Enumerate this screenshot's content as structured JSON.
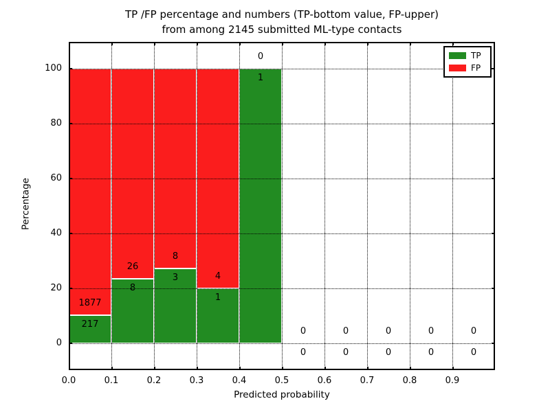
{
  "chart_data": {
    "type": "bar",
    "stacked": true,
    "title_line1": "TP /FP percentage and numbers (TP-bottom value, FP-upper)",
    "title_line2": "from among 2145 submitted ML-type contacts",
    "total_contacts": 2145,
    "xlabel": "Predicted probability",
    "ylabel": "Percentage",
    "xlim": [
      0.0,
      1.0
    ],
    "ylim": [
      -10,
      110
    ],
    "grid": true,
    "x_tick_labels": [
      "0.0",
      "0.1",
      "0.2",
      "0.3",
      "0.4",
      "0.5",
      "0.6",
      "0.7",
      "0.8",
      "0.9"
    ],
    "y_tick_values": [
      0,
      20,
      40,
      60,
      80,
      100
    ],
    "legend": {
      "position": "upper right",
      "entries": [
        {
          "label": "TP",
          "color": "#228b22"
        },
        {
          "label": "FP",
          "color": "#fb1d1d"
        }
      ]
    },
    "colors": {
      "tp_green": "#228b22",
      "fp_red": "#fb1d1d",
      "bar_edge": "#ffffff",
      "grid": "#000000"
    },
    "bins": [
      {
        "bin": "0.0-0.1",
        "tp": 217,
        "fp": 1877,
        "tp_pct": 10.36,
        "fp_pct": 89.64
      },
      {
        "bin": "0.1-0.2",
        "tp": 8,
        "fp": 26,
        "tp_pct": 23.53,
        "fp_pct": 76.47
      },
      {
        "bin": "0.2-0.3",
        "tp": 3,
        "fp": 8,
        "tp_pct": 27.27,
        "fp_pct": 72.73
      },
      {
        "bin": "0.3-0.4",
        "tp": 1,
        "fp": 4,
        "tp_pct": 20.0,
        "fp_pct": 80.0
      },
      {
        "bin": "0.4-0.5",
        "tp": 1,
        "fp": 0,
        "tp_pct": 100.0,
        "fp_pct": 0.0
      },
      {
        "bin": "0.5-0.6",
        "tp": 0,
        "fp": 0,
        "tp_pct": 0.0,
        "fp_pct": 0.0
      },
      {
        "bin": "0.6-0.7",
        "tp": 0,
        "fp": 0,
        "tp_pct": 0.0,
        "fp_pct": 0.0
      },
      {
        "bin": "0.7-0.8",
        "tp": 0,
        "fp": 0,
        "tp_pct": 0.0,
        "fp_pct": 0.0
      },
      {
        "bin": "0.8-0.9",
        "tp": 0,
        "fp": 0,
        "tp_pct": 0.0,
        "fp_pct": 0.0
      },
      {
        "bin": "0.9-1.0",
        "tp": 0,
        "fp": 0,
        "tp_pct": 0.0,
        "fp_pct": 0.0
      }
    ]
  }
}
